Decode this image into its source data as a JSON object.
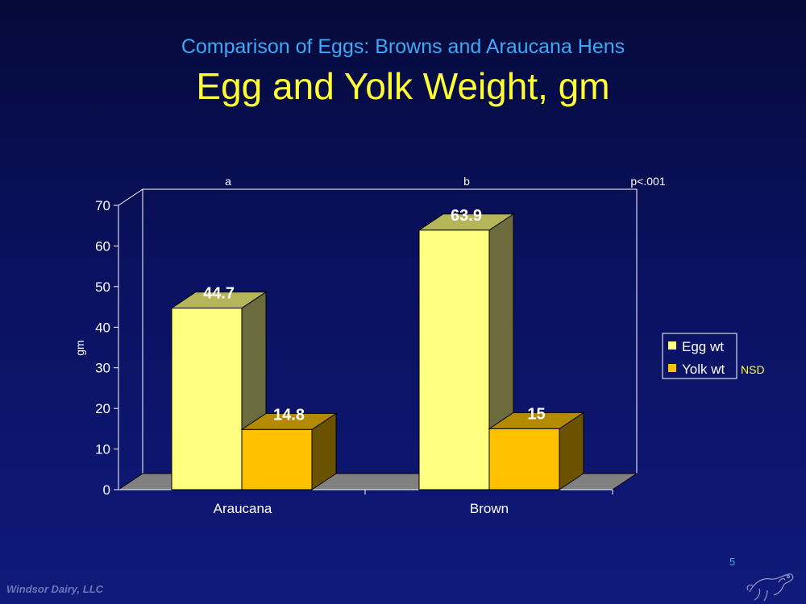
{
  "slide": {
    "subtitle": "Comparison of Eggs: Browns and Araucana Hens",
    "title": "Egg and Yolk Weight, gm",
    "footer": "Windsor Dairy, LLC",
    "page_number": "5"
  },
  "chart_data": {
    "type": "bar",
    "style": "3d-clustered",
    "categories": [
      "Araucana",
      "Brown"
    ],
    "series": [
      {
        "name": "Egg wt",
        "values": [
          44.7,
          63.9
        ],
        "labels": [
          "44.7",
          "63.9"
        ],
        "color": "#ffff80",
        "side_color": "#6b6b3e",
        "top_color": "#b5b55a"
      },
      {
        "name": "Yolk wt",
        "values": [
          14.8,
          15
        ],
        "labels": [
          "14.8",
          "15"
        ],
        "color": "#ffc000",
        "side_color": "#6b5200",
        "top_color": "#b38a00"
      }
    ],
    "ylabel": "gm",
    "ylim": [
      0,
      70
    ],
    "yticks": [
      "0",
      "10",
      "20",
      "30",
      "40",
      "50",
      "60",
      "70"
    ],
    "annotations": {
      "significance": [
        "a",
        "b"
      ],
      "p_value": "p<.001",
      "legend_note": "NSD"
    },
    "legend_position": "right",
    "grid": false
  },
  "colors": {
    "background": "#0a1160",
    "subtitle": "#3fa9f5",
    "title": "#ffff33",
    "text": "#ffffff",
    "floor": "#808080"
  }
}
